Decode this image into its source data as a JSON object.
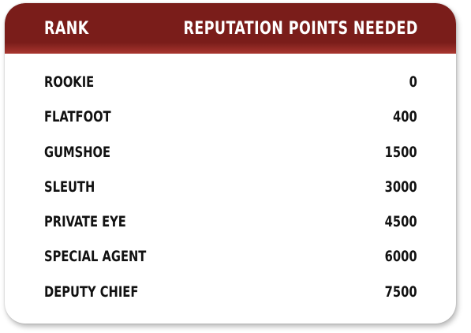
{
  "table": {
    "headers": {
      "rank": "RANK",
      "points": "REPUTATION POINTS NEEDED"
    },
    "rows": [
      {
        "rank": "ROOKIE",
        "points": "0"
      },
      {
        "rank": "FLATFOOT",
        "points": "400"
      },
      {
        "rank": "GUMSHOE",
        "points": "1500"
      },
      {
        "rank": "SLEUTH",
        "points": "3000"
      },
      {
        "rank": "PRIVATE EYE",
        "points": "4500"
      },
      {
        "rank": "SPECIAL AGENT",
        "points": "6000"
      },
      {
        "rank": "DEPUTY CHIEF",
        "points": "7500"
      }
    ]
  },
  "colors": {
    "header_bg": "#7a1d1a",
    "header_text": "#ffffff",
    "body_text": "#111111",
    "card_bg": "#ffffff"
  }
}
